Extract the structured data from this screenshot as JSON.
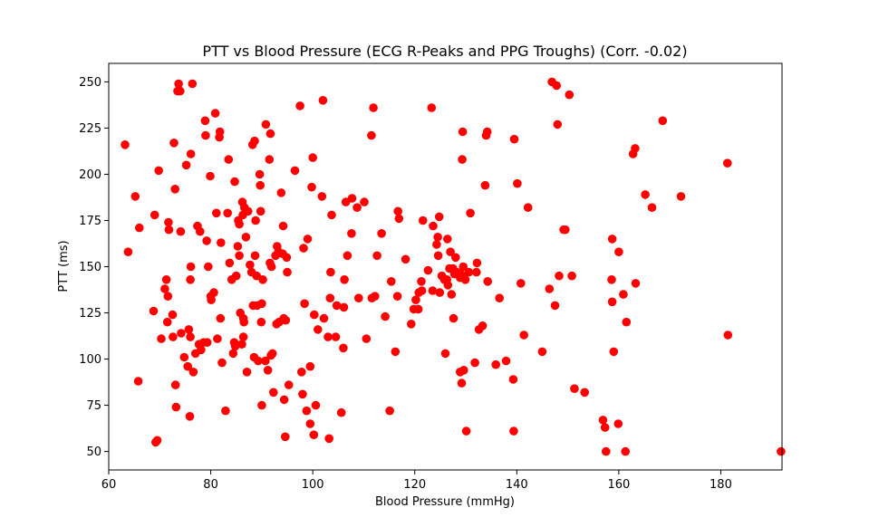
{
  "chart_data": {
    "type": "scatter",
    "title": "PTT vs Blood Pressure (ECG R-Peaks and PPG Troughs) (Corr. -0.02)",
    "xlabel": "Blood Pressure (mmHg)",
    "ylabel": "PTT (ms)",
    "xlim": [
      60,
      192
    ],
    "ylim": [
      40,
      260
    ],
    "xticks": [
      60,
      80,
      100,
      120,
      140,
      160,
      180
    ],
    "yticks": [
      50,
      75,
      100,
      125,
      150,
      175,
      200,
      225,
      250
    ],
    "grid": false,
    "marker_color": "#ff0000",
    "series": [
      {
        "points": [
          [
            63.2,
            216
          ],
          [
            63.8,
            158
          ],
          [
            65.2,
            188
          ],
          [
            65.8,
            88
          ],
          [
            66.0,
            171
          ],
          [
            68.8,
            126
          ],
          [
            69.0,
            178
          ],
          [
            69.2,
            55
          ],
          [
            69.5,
            56
          ],
          [
            69.8,
            202
          ],
          [
            70.3,
            111
          ],
          [
            71.0,
            138
          ],
          [
            71.3,
            143
          ],
          [
            71.5,
            120
          ],
          [
            71.6,
            134
          ],
          [
            71.7,
            174
          ],
          [
            71.8,
            170
          ],
          [
            72.5,
            124
          ],
          [
            72.6,
            112
          ],
          [
            72.8,
            217
          ],
          [
            73.0,
            192
          ],
          [
            73.1,
            86
          ],
          [
            73.2,
            74
          ],
          [
            73.5,
            245
          ],
          [
            73.7,
            249
          ],
          [
            74.0,
            245
          ],
          [
            74.1,
            169
          ],
          [
            74.2,
            114
          ],
          [
            74.8,
            101
          ],
          [
            75.2,
            205
          ],
          [
            75.5,
            96
          ],
          [
            75.7,
            116
          ],
          [
            75.9,
            69
          ],
          [
            76.0,
            112
          ],
          [
            76.0,
            143
          ],
          [
            76.1,
            150
          ],
          [
            76.1,
            211
          ],
          [
            76.4,
            249
          ],
          [
            76.6,
            93
          ],
          [
            77.0,
            103
          ],
          [
            77.4,
            172
          ],
          [
            77.7,
            108
          ],
          [
            77.9,
            169
          ],
          [
            78.1,
            105
          ],
          [
            78.6,
            109
          ],
          [
            78.9,
            229
          ],
          [
            79.0,
            221
          ],
          [
            79.2,
            164
          ],
          [
            79.3,
            109
          ],
          [
            79.5,
            150
          ],
          [
            79.9,
            199
          ],
          [
            80.0,
            134
          ],
          [
            80.1,
            132
          ],
          [
            80.6,
            136
          ],
          [
            80.9,
            233
          ],
          [
            81.1,
            179
          ],
          [
            81.3,
            111
          ],
          [
            81.7,
            220
          ],
          [
            81.8,
            223
          ],
          [
            81.9,
            122
          ],
          [
            82.0,
            163
          ],
          [
            82.2,
            98
          ],
          [
            82.9,
            72
          ],
          [
            83.3,
            179
          ],
          [
            83.5,
            208
          ],
          [
            83.7,
            152
          ],
          [
            84.1,
            143
          ],
          [
            84.4,
            103
          ],
          [
            84.6,
            109
          ],
          [
            84.7,
            196
          ],
          [
            84.8,
            107
          ],
          [
            85.0,
            145
          ],
          [
            85.3,
            161
          ],
          [
            85.4,
            175
          ],
          [
            85.6,
            156
          ],
          [
            85.6,
            173
          ],
          [
            85.8,
            125
          ],
          [
            86.1,
            108
          ],
          [
            86.2,
            185
          ],
          [
            86.3,
            178
          ],
          [
            86.4,
            112
          ],
          [
            86.4,
            122
          ],
          [
            86.5,
            120
          ],
          [
            86.6,
            182
          ],
          [
            86.9,
            166
          ],
          [
            87.1,
            93
          ],
          [
            87.3,
            180
          ],
          [
            87.7,
            151
          ],
          [
            88.0,
            147
          ],
          [
            88.2,
            216
          ],
          [
            88.3,
            129
          ],
          [
            88.5,
            101
          ],
          [
            88.6,
            218
          ],
          [
            88.7,
            156
          ],
          [
            88.8,
            175
          ],
          [
            89.0,
            145
          ],
          [
            89.1,
            129
          ],
          [
            89.3,
            99
          ],
          [
            89.6,
            200
          ],
          [
            89.7,
            194
          ],
          [
            89.8,
            180
          ],
          [
            89.9,
            120
          ],
          [
            90.0,
            75
          ],
          [
            90.0,
            130
          ],
          [
            90.2,
            143
          ],
          [
            90.7,
            99
          ],
          [
            90.8,
            227
          ],
          [
            91.2,
            94
          ],
          [
            91.5,
            208
          ],
          [
            91.6,
            152
          ],
          [
            91.7,
            222
          ],
          [
            91.8,
            102
          ],
          [
            91.9,
            150
          ],
          [
            92.1,
            103
          ],
          [
            92.3,
            82
          ],
          [
            92.7,
            156
          ],
          [
            92.9,
            119
          ],
          [
            93.0,
            161
          ],
          [
            93.3,
            158
          ],
          [
            93.4,
            120
          ],
          [
            93.8,
            190
          ],
          [
            94.1,
            157
          ],
          [
            94.2,
            172
          ],
          [
            94.3,
            122
          ],
          [
            94.4,
            78
          ],
          [
            94.6,
            58
          ],
          [
            94.7,
            121
          ],
          [
            94.9,
            155
          ],
          [
            95.0,
            147
          ],
          [
            95.3,
            86
          ],
          [
            96.5,
            202
          ],
          [
            97.5,
            237
          ],
          [
            97.8,
            93
          ],
          [
            98.0,
            81
          ],
          [
            98.2,
            160
          ],
          [
            98.4,
            130
          ],
          [
            98.8,
            72
          ],
          [
            99.0,
            165
          ],
          [
            99.5,
            65
          ],
          [
            99.5,
            96
          ],
          [
            99.8,
            193
          ],
          [
            100.0,
            209
          ],
          [
            100.2,
            59
          ],
          [
            100.3,
            124
          ],
          [
            100.6,
            75
          ],
          [
            101.0,
            116
          ],
          [
            101.8,
            188
          ],
          [
            102.0,
            240
          ],
          [
            102.2,
            122
          ],
          [
            103.0,
            112
          ],
          [
            103.2,
            57
          ],
          [
            103.4,
            133
          ],
          [
            103.5,
            147
          ],
          [
            103.7,
            178
          ],
          [
            104.5,
            112
          ],
          [
            104.7,
            129
          ],
          [
            105.6,
            71
          ],
          [
            106.0,
            106
          ],
          [
            106.1,
            128
          ],
          [
            106.2,
            143
          ],
          [
            106.5,
            185
          ],
          [
            106.8,
            156
          ],
          [
            107.6,
            168
          ],
          [
            107.7,
            187
          ],
          [
            108.7,
            182
          ],
          [
            109.0,
            133
          ],
          [
            110.1,
            185
          ],
          [
            110.5,
            111
          ],
          [
            111.5,
            221
          ],
          [
            111.6,
            133
          ],
          [
            111.9,
            236
          ],
          [
            112.2,
            134
          ],
          [
            112.6,
            156
          ],
          [
            113.5,
            168
          ],
          [
            114.2,
            123
          ],
          [
            115.1,
            72
          ],
          [
            115.4,
            142
          ],
          [
            116.2,
            104
          ],
          [
            116.6,
            134
          ],
          [
            116.7,
            180
          ],
          [
            116.9,
            176
          ],
          [
            118.2,
            154
          ],
          [
            119.3,
            119
          ],
          [
            119.8,
            127
          ],
          [
            120.2,
            132
          ],
          [
            120.7,
            127
          ],
          [
            120.8,
            136
          ],
          [
            121.3,
            142
          ],
          [
            121.4,
            137
          ],
          [
            121.6,
            175
          ],
          [
            122.6,
            148
          ],
          [
            123.3,
            236
          ],
          [
            123.5,
            137
          ],
          [
            123.6,
            172
          ],
          [
            124.3,
            162
          ],
          [
            124.5,
            166
          ],
          [
            124.6,
            156
          ],
          [
            124.8,
            177
          ],
          [
            124.9,
            136
          ],
          [
            125.3,
            145
          ],
          [
            125.8,
            143
          ],
          [
            126.0,
            103
          ],
          [
            126.3,
            143
          ],
          [
            126.4,
            165
          ],
          [
            126.5,
            140
          ],
          [
            126.8,
            149
          ],
          [
            127.0,
            158
          ],
          [
            127.2,
            135
          ],
          [
            127.5,
            149
          ],
          [
            127.6,
            122
          ],
          [
            127.8,
            146
          ],
          [
            128.0,
            155
          ],
          [
            128.2,
            147
          ],
          [
            128.9,
            93
          ],
          [
            128.9,
            144
          ],
          [
            129.0,
            146
          ],
          [
            129.2,
            87
          ],
          [
            129.3,
            208
          ],
          [
            129.4,
            223
          ],
          [
            129.5,
            150
          ],
          [
            129.6,
            94
          ],
          [
            129.7,
            144
          ],
          [
            129.9,
            143
          ],
          [
            130.1,
            61
          ],
          [
            130.6,
            147
          ],
          [
            130.9,
            179
          ],
          [
            131.8,
            98
          ],
          [
            132.1,
            147
          ],
          [
            132.2,
            152
          ],
          [
            132.6,
            116
          ],
          [
            133.3,
            118
          ],
          [
            133.8,
            194
          ],
          [
            134.0,
            221
          ],
          [
            134.2,
            223
          ],
          [
            134.3,
            142
          ],
          [
            135.9,
            97
          ],
          [
            136.6,
            133
          ],
          [
            137.9,
            99
          ],
          [
            139.3,
            89
          ],
          [
            139.4,
            61
          ],
          [
            139.5,
            219
          ],
          [
            140.1,
            195
          ],
          [
            140.8,
            141
          ],
          [
            141.4,
            113
          ],
          [
            142.2,
            182
          ],
          [
            145.0,
            104
          ],
          [
            146.4,
            138
          ],
          [
            146.9,
            250
          ],
          [
            147.5,
            129
          ],
          [
            147.8,
            248
          ],
          [
            148.0,
            227
          ],
          [
            148.3,
            145
          ],
          [
            149.2,
            170
          ],
          [
            149.5,
            170
          ],
          [
            150.3,
            243
          ],
          [
            150.8,
            145
          ],
          [
            151.3,
            84
          ],
          [
            153.3,
            82
          ],
          [
            156.9,
            67
          ],
          [
            157.3,
            63
          ],
          [
            157.5,
            50
          ],
          [
            158.6,
            143
          ],
          [
            158.7,
            165
          ],
          [
            158.7,
            131
          ],
          [
            159.0,
            104
          ],
          [
            159.9,
            65
          ],
          [
            160.0,
            158
          ],
          [
            160.9,
            135
          ],
          [
            161.3,
            50
          ],
          [
            161.5,
            120
          ],
          [
            162.8,
            211
          ],
          [
            163.2,
            214
          ],
          [
            163.3,
            141
          ],
          [
            165.2,
            189
          ],
          [
            166.5,
            182
          ],
          [
            168.6,
            229
          ],
          [
            172.2,
            188
          ],
          [
            181.3,
            206
          ],
          [
            181.4,
            113
          ],
          [
            191.8,
            50
          ]
        ]
      }
    ]
  }
}
